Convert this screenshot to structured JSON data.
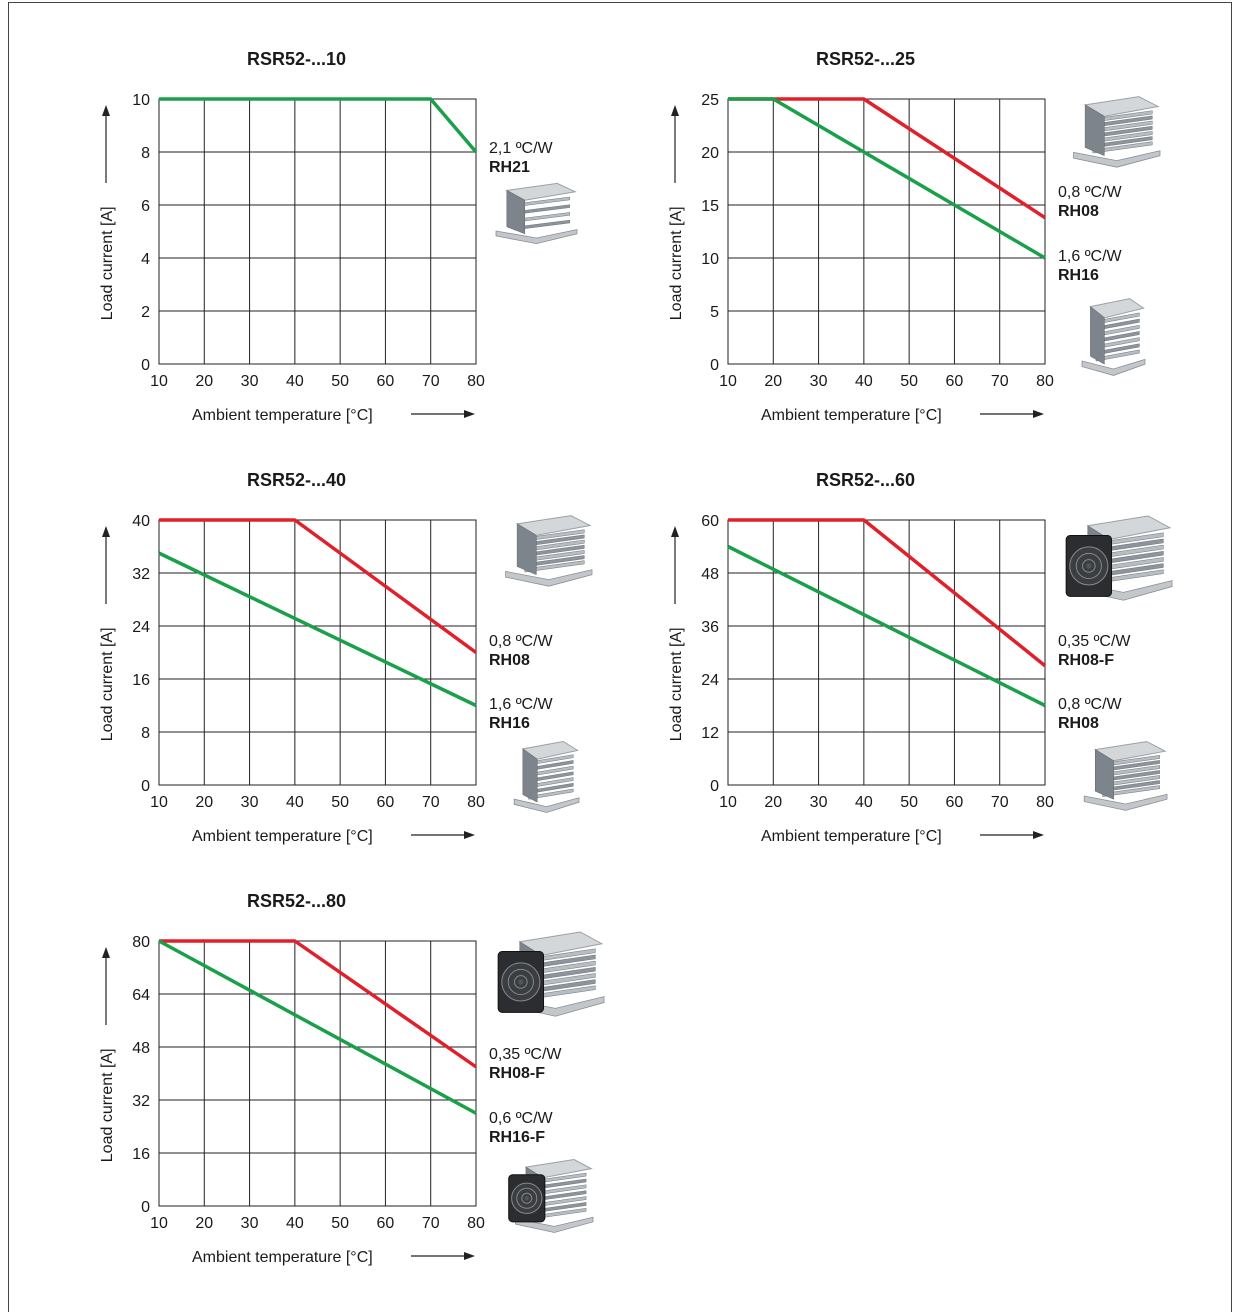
{
  "chart_data": [
    {
      "type": "line",
      "title": "RSR52-...10",
      "xlabel": "Ambient temperature [°C]",
      "ylabel": "Load current [A]",
      "xlim": [
        10,
        80
      ],
      "ylim": [
        0,
        10
      ],
      "xticks": [
        10,
        20,
        30,
        40,
        50,
        60,
        70,
        80
      ],
      "yticks": [
        0,
        2,
        4,
        6,
        8,
        10
      ],
      "grid": true,
      "series": [
        {
          "name": "RH21",
          "color": "#1aa04a",
          "x": [
            10,
            70,
            80
          ],
          "y": [
            10,
            10,
            8
          ]
        }
      ],
      "heatsinks": [
        {
          "rating": "2,1 ºC/W",
          "code": "RH21",
          "icon": "heatsink-small-icon"
        }
      ]
    },
    {
      "type": "line",
      "title": "RSR52-...25",
      "xlabel": "Ambient temperature [°C]",
      "ylabel": "Load current [A]",
      "xlim": [
        10,
        80
      ],
      "ylim": [
        0,
        25
      ],
      "xticks": [
        10,
        20,
        30,
        40,
        50,
        60,
        70,
        80
      ],
      "yticks": [
        0,
        5,
        10,
        15,
        20,
        25
      ],
      "grid": true,
      "series": [
        {
          "name": "RH08",
          "color": "#e0202a",
          "x": [
            10,
            40,
            80
          ],
          "y": [
            25,
            25,
            13.8
          ]
        },
        {
          "name": "RH16",
          "color": "#1aa04a",
          "x": [
            10,
            20,
            80
          ],
          "y": [
            25,
            25,
            10
          ]
        }
      ],
      "heatsinks": [
        {
          "rating": "0,8 ºC/W",
          "code": "RH08",
          "icon": "heatsink-wide-icon"
        },
        {
          "rating": "1,6 ºC/W",
          "code": "RH16",
          "icon": "heatsink-tall-icon"
        }
      ]
    },
    {
      "type": "line",
      "title": "RSR52-...40",
      "xlabel": "Ambient temperature [°C]",
      "ylabel": "Load current [A]",
      "xlim": [
        10,
        80
      ],
      "ylim": [
        0,
        40
      ],
      "xticks": [
        10,
        20,
        30,
        40,
        50,
        60,
        70,
        80
      ],
      "yticks": [
        0,
        8,
        16,
        24,
        32,
        40
      ],
      "grid": true,
      "series": [
        {
          "name": "RH08",
          "color": "#e0202a",
          "x": [
            10,
            40,
            80
          ],
          "y": [
            40,
            40,
            20
          ]
        },
        {
          "name": "RH16",
          "color": "#1aa04a",
          "x": [
            10,
            80
          ],
          "y": [
            35,
            12
          ]
        }
      ],
      "heatsinks": [
        {
          "rating": "0,8 ºC/W",
          "code": "RH08",
          "icon": "heatsink-wide-icon"
        },
        {
          "rating": "1,6 ºC/W",
          "code": "RH16",
          "icon": "heatsink-tall-icon"
        }
      ]
    },
    {
      "type": "line",
      "title": "RSR52-...60",
      "xlabel": "Ambient temperature [°C]",
      "ylabel": "Load current [A]",
      "xlim": [
        10,
        80
      ],
      "ylim": [
        0,
        60
      ],
      "xticks": [
        10,
        20,
        30,
        40,
        50,
        60,
        70,
        80
      ],
      "yticks": [
        0,
        12,
        24,
        36,
        48,
        60
      ],
      "grid": true,
      "series": [
        {
          "name": "RH08-F",
          "color": "#e0202a",
          "x": [
            10,
            40,
            80
          ],
          "y": [
            60,
            60,
            27
          ]
        },
        {
          "name": "RH08",
          "color": "#1aa04a",
          "x": [
            10,
            80
          ],
          "y": [
            54,
            18
          ]
        }
      ],
      "heatsinks": [
        {
          "rating": "0,35 ºC/W",
          "code": "RH08-F",
          "icon": "heatsink-fan-icon"
        },
        {
          "rating": "0,8 ºC/W",
          "code": "RH08",
          "icon": "heatsink-wide-icon"
        }
      ]
    },
    {
      "type": "line",
      "title": "RSR52-...80",
      "xlabel": "Ambient temperature [°C]",
      "ylabel": "Load current [A]",
      "xlim": [
        10,
        80
      ],
      "ylim": [
        0,
        80
      ],
      "xticks": [
        10,
        20,
        30,
        40,
        50,
        60,
        70,
        80
      ],
      "yticks": [
        0,
        16,
        32,
        48,
        64,
        80
      ],
      "grid": true,
      "series": [
        {
          "name": "RH08-F",
          "color": "#e0202a",
          "x": [
            10,
            40,
            80
          ],
          "y": [
            80,
            80,
            42
          ]
        },
        {
          "name": "RH16-F",
          "color": "#1aa04a",
          "x": [
            10,
            80
          ],
          "y": [
            80,
            28
          ]
        }
      ],
      "heatsinks": [
        {
          "rating": "0,35 ºC/W",
          "code": "RH08-F",
          "icon": "heatsink-fan-icon"
        },
        {
          "rating": "0,6 ºC/W",
          "code": "RH16-F",
          "icon": "heatsink-fan-tall-icon"
        }
      ]
    }
  ]
}
